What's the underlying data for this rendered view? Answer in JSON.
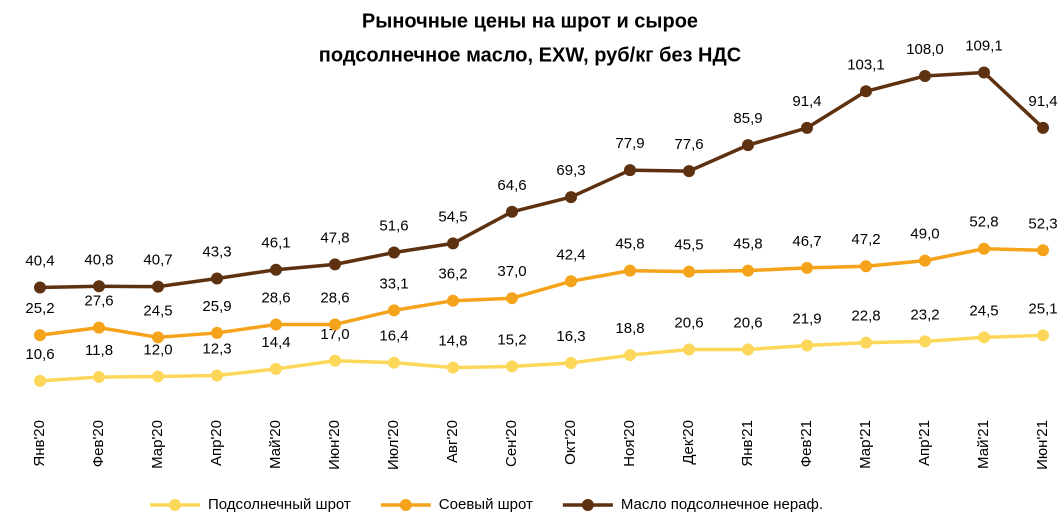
{
  "chart_data": {
    "type": "line",
    "title": [
      "Рыночные цены на шрот и сырое",
      "подсолнечное масло, EXW, руб/кг без НДС"
    ],
    "categories": [
      "Янв'20",
      "Фев'20",
      "Мар'20",
      "Апр'20",
      "Май'20",
      "Июн'20",
      "Июл'20",
      "Авг'20",
      "Сен'20",
      "Окт'20",
      "Ноя'20",
      "Дек'20",
      "Янв'21",
      "Фев'21",
      "Мар'21",
      "Апр'21",
      "Май'21",
      "Июн'21"
    ],
    "series": [
      {
        "name": "Подсолнечный шрот",
        "color": "#fdd75a",
        "values": [
          10.6,
          11.8,
          12.0,
          12.3,
          14.4,
          17.0,
          16.4,
          14.8,
          15.2,
          16.3,
          18.8,
          20.6,
          20.6,
          21.9,
          22.8,
          23.2,
          24.5,
          25.1
        ],
        "value_labels": [
          "10,6",
          "11,8",
          "12,0",
          "12,3",
          "14,4",
          "17,0",
          "16,4",
          "14,8",
          "15,2",
          "16,3",
          "18,8",
          "20,6",
          "20,6",
          "21,9",
          "22,8",
          "23,2",
          "24,5",
          "25,1"
        ]
      },
      {
        "name": "Соевый шрот",
        "color": "#f5a31a",
        "values": [
          25.2,
          27.6,
          24.5,
          25.9,
          28.6,
          28.6,
          33.1,
          36.2,
          37.0,
          42.4,
          45.8,
          45.5,
          45.8,
          46.7,
          47.2,
          49.0,
          52.8,
          52.3
        ],
        "value_labels": [
          "25,2",
          "27,6",
          "24,5",
          "25,9",
          "28,6",
          "28,6",
          "33,1",
          "36,2",
          "37,0",
          "42,4",
          "45,8",
          "45,5",
          "45,8",
          "46,7",
          "47,2",
          "49,0",
          "52,8",
          "52,3"
        ]
      },
      {
        "name": "Масло подсолнечное нераф.",
        "color": "#5e3110",
        "values": [
          40.4,
          40.8,
          40.7,
          43.3,
          46.1,
          47.8,
          51.6,
          54.5,
          64.6,
          69.3,
          77.9,
          77.6,
          85.9,
          91.4,
          103.1,
          108.0,
          109.1,
          91.4
        ],
        "value_labels": [
          "40,4",
          "40,8",
          "40,7",
          "43,3",
          "46,1",
          "47,8",
          "51,6",
          "54,5",
          "64,6",
          "69,3",
          "77,9",
          "77,6",
          "85,9",
          "91,4",
          "103,1",
          "108,0",
          "109,1",
          "91,4"
        ]
      }
    ]
  }
}
